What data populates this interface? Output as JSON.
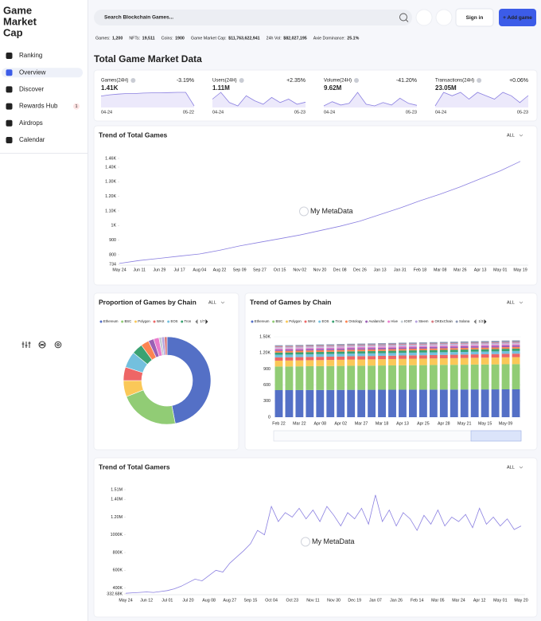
{
  "sidebar": {
    "logo": [
      "Game",
      "Market",
      "Cap"
    ],
    "active": 1,
    "nav": [
      {
        "label": "Ranking"
      },
      {
        "label": "Overview"
      },
      {
        "label": "Discover"
      },
      {
        "label": "Rewards Hub",
        "badge": "1"
      },
      {
        "label": "Airdrops"
      },
      {
        "label": "Calendar"
      }
    ]
  },
  "header": {
    "search_placeholder": "Search Blockchain Games...",
    "sign_in": "Sign in",
    "add_game": "+ Add game"
  },
  "stats": [
    {
      "label": "Games:",
      "value": "1,200"
    },
    {
      "label": "NFTs:",
      "value": "19,511"
    },
    {
      "label": "Coins:",
      "value": "1900"
    },
    {
      "label": "Game Market Cap:",
      "value": "$11,763,622,941"
    },
    {
      "label": "24h Vol:",
      "value": "$82,027,195"
    },
    {
      "label": "Axie Dominance:",
      "value": "25.1%"
    }
  ],
  "market": {
    "title": "Total Game Market Data",
    "cards": [
      {
        "label": "Games(24H)",
        "value": "1.41K",
        "change": "-3.19%",
        "start": "04-24",
        "end": "05-22",
        "values": [
          1450,
          1455,
          1458,
          1460,
          1460,
          1462,
          1463,
          1463,
          1464,
          1465,
          1465,
          1410
        ]
      },
      {
        "label": "Users(24H)",
        "value": "1.11M",
        "change": "+2.35%",
        "start": "04-24",
        "end": "05-23",
        "values": [
          1.2,
          1.4,
          1.1,
          1.0,
          1.3,
          1.15,
          1.05,
          1.25,
          1.1,
          1.2,
          1.05,
          1.11
        ]
      },
      {
        "label": "Volume(24H)",
        "value": "9.62M",
        "change": "-41.20%",
        "start": "04-24",
        "end": "05-23",
        "values": [
          9,
          14,
          10,
          12,
          25,
          11,
          9,
          13,
          10,
          18,
          12,
          9.62
        ]
      },
      {
        "label": "Transactions(24H)",
        "value": "23.05M",
        "change": "+0.06%",
        "start": "04-24",
        "end": "05-23",
        "values": [
          20,
          24,
          23,
          24,
          22,
          24,
          23,
          22,
          24,
          23,
          21,
          23.05
        ]
      }
    ]
  },
  "chart_data": [
    {
      "type": "line",
      "title": "Trend of Total Games",
      "range": "ALL",
      "watermark": "My MetaData",
      "color": "#8a7fe0",
      "categories": [
        "May 24",
        "Jun 11",
        "Jun 29",
        "Jul 17",
        "Aug 04",
        "Aug 22",
        "Sep 09",
        "Sep 27",
        "Oct 15",
        "Nov 02",
        "Nov 20",
        "Dec 08",
        "Dec 26",
        "Jan 13",
        "Jan 31",
        "Feb 18",
        "Mar 08",
        "Mar 26",
        "Apr 13",
        "May 01",
        "May 19"
      ],
      "values": [
        740,
        760,
        775,
        790,
        805,
        830,
        860,
        885,
        910,
        935,
        965,
        995,
        1030,
        1075,
        1120,
        1170,
        1215,
        1265,
        1320,
        1375,
        1440
      ],
      "ylim": [
        734,
        1460
      ],
      "yticks": [
        734,
        800,
        900,
        {
          "value": 1000,
          "label": "1K"
        },
        {
          "value": 1100,
          "label": "1.10K"
        },
        {
          "value": 1200,
          "label": "1.20K"
        },
        {
          "value": 1300,
          "label": "1.30K"
        },
        {
          "value": 1400,
          "label": "1.40K"
        },
        {
          "value": 1460,
          "label": "1.46K"
        }
      ]
    },
    {
      "type": "pie",
      "title": "Proportion of Games by Chain",
      "range": "ALL",
      "pager": "1/7",
      "categories": [
        "Ethereum",
        "BSC",
        "Polygon",
        "WAX",
        "EOS",
        "Tron",
        null,
        null,
        null,
        null,
        null,
        null
      ],
      "values": [
        47,
        22,
        6,
        5,
        6,
        4,
        3,
        2,
        2,
        1,
        1,
        1
      ],
      "colors": [
        "#5470c6",
        "#91cc75",
        "#fac858",
        "#ee6666",
        "#73c0de",
        "#3ba272",
        "#fc8452",
        "#9a60b4",
        "#ea7ccc",
        "#c4ccd3",
        "#b6a2de",
        "#d87a80"
      ]
    },
    {
      "type": "stacked_bar",
      "title": "Trend of Games by Chain",
      "range": "ALL",
      "pager": "1/3",
      "categories": [
        "Feb 22",
        null,
        "Mar 22",
        null,
        "Apr 08",
        null,
        "Apr 02",
        null,
        "Mar 27",
        null,
        "Mar 18",
        null,
        "Apr 13",
        null,
        "Apr 25",
        null,
        "Apr 28",
        null,
        "May 21",
        null,
        "May 15",
        null,
        "May 09",
        null
      ],
      "ylim": [
        0,
        1500
      ],
      "yticks": [
        0,
        300,
        600,
        900,
        {
          "value": 1200,
          "label": "1.20K"
        },
        {
          "value": 1500,
          "label": "1.50K"
        }
      ],
      "series": [
        {
          "name": "Ethereum",
          "color": "#5470c6",
          "values": [
            505,
            505,
            506,
            507,
            507,
            508,
            509,
            510,
            510,
            511,
            512,
            512,
            513,
            514,
            514,
            515,
            516,
            516,
            517,
            518,
            518,
            519,
            520,
            520
          ]
        },
        {
          "name": "BSC",
          "color": "#91cc75",
          "values": [
            440,
            441,
            442,
            444,
            445,
            446,
            447,
            449,
            450,
            451,
            452,
            454,
            455,
            456,
            457,
            459,
            460,
            461,
            462,
            464,
            465,
            466,
            468,
            470
          ]
        },
        {
          "name": "Polygon",
          "color": "#fac858",
          "values": [
            110,
            111,
            112,
            112,
            113,
            114,
            115,
            116,
            117,
            117,
            118,
            119,
            120,
            121,
            122,
            122,
            123,
            124,
            125,
            126,
            127,
            128,
            129,
            130
          ]
        },
        {
          "name": "WAX",
          "color": "#ee6666",
          "values": [
            60,
            60,
            60,
            61,
            61,
            61,
            61,
            62,
            62,
            62,
            62,
            62,
            63,
            63,
            63,
            63,
            63,
            64,
            64,
            64,
            64,
            64,
            65,
            65
          ]
        },
        {
          "name": "EOS",
          "color": "#73c0de",
          "values": [
            50,
            50,
            50,
            50,
            50,
            50,
            50,
            50,
            50,
            50,
            50,
            50,
            50,
            50,
            50,
            50,
            50,
            50,
            50,
            50,
            50,
            50,
            50,
            50
          ]
        },
        {
          "name": "Tron",
          "color": "#3ba272",
          "values": [
            40,
            40,
            40,
            40,
            41,
            41,
            41,
            41,
            41,
            41,
            42,
            42,
            42,
            42,
            42,
            42,
            43,
            43,
            43,
            43,
            43,
            43,
            44,
            44
          ]
        },
        {
          "name": "Ontology",
          "color": "#fc8452",
          "values": [
            30,
            30,
            30,
            30,
            30,
            30,
            30,
            30,
            30,
            30,
            30,
            30,
            30,
            30,
            30,
            30,
            30,
            30,
            30,
            30,
            30,
            30,
            30,
            30
          ]
        },
        {
          "name": "Avalanche",
          "color": "#9a60b4",
          "values": [
            25,
            25,
            25,
            26,
            26,
            26,
            27,
            27,
            27,
            28,
            28,
            28,
            29,
            29,
            29,
            30,
            30,
            30,
            31,
            31,
            31,
            32,
            32,
            32
          ]
        },
        {
          "name": "Hive",
          "color": "#ea7ccc",
          "values": [
            20,
            20,
            20,
            20,
            20,
            20,
            20,
            20,
            20,
            20,
            20,
            20,
            20,
            20,
            20,
            20,
            20,
            20,
            20,
            20,
            20,
            20,
            20,
            20
          ]
        },
        {
          "name": "IOST",
          "color": "#c4ccd3",
          "values": [
            15,
            15,
            15,
            15,
            15,
            15,
            15,
            15,
            15,
            15,
            15,
            15,
            15,
            15,
            15,
            15,
            15,
            15,
            15,
            15,
            15,
            15,
            15,
            15
          ]
        },
        {
          "name": "Steem",
          "color": "#b6a2de",
          "values": [
            15,
            15,
            15,
            15,
            15,
            15,
            15,
            15,
            15,
            15,
            15,
            15,
            15,
            15,
            15,
            15,
            15,
            15,
            15,
            15,
            15,
            15,
            15,
            15
          ]
        },
        {
          "name": "OKExChain",
          "color": "#d87a80",
          "values": [
            12,
            12,
            12,
            12,
            12,
            12,
            12,
            12,
            12,
            12,
            12,
            12,
            12,
            12,
            12,
            12,
            12,
            12,
            12,
            12,
            12,
            12,
            12,
            12
          ]
        },
        {
          "name": "Solana",
          "color": "#8d98b3",
          "values": [
            20,
            20,
            21,
            21,
            22,
            22,
            23,
            23,
            24,
            24,
            25,
            25,
            26,
            26,
            27,
            27,
            28,
            28,
            29,
            29,
            30,
            30,
            30,
            30
          ]
        }
      ]
    },
    {
      "type": "line",
      "title": "Trend of Total Gamers",
      "range": "ALL",
      "watermark": "My MetaData",
      "color": "#8a7fe0",
      "categories": [
        "May 24",
        null,
        null,
        "Jun 12",
        null,
        null,
        "Jul 01",
        null,
        null,
        "Jul 20",
        null,
        null,
        "Aug 08",
        null,
        null,
        "Aug 27",
        null,
        null,
        "Sep 15",
        null,
        null,
        "Oct 04",
        null,
        null,
        "Oct 23",
        null,
        null,
        "Nov 11",
        null,
        null,
        "Nov 30",
        null,
        null,
        "Dec 19",
        null,
        null,
        "Jan 07",
        null,
        null,
        "Jan 26",
        null,
        null,
        "Feb 14",
        null,
        null,
        "Mar 05",
        null,
        null,
        "Mar 24",
        null,
        null,
        "Apr 12",
        null,
        null,
        "May 01",
        null,
        null,
        "May 20"
      ],
      "values": [
        340000,
        345000,
        350000,
        355000,
        350000,
        360000,
        370000,
        390000,
        420000,
        460000,
        500000,
        480000,
        540000,
        600000,
        580000,
        680000,
        750000,
        820000,
        900000,
        1050000,
        1000000,
        1320000,
        1150000,
        1250000,
        1200000,
        1300000,
        1180000,
        1280000,
        1150000,
        1320000,
        1220000,
        1100000,
        1250000,
        1180000,
        1300000,
        1120000,
        1450000,
        1150000,
        1280000,
        1100000,
        1250000,
        1180000,
        1050000,
        1220000,
        1120000,
        1280000,
        1100000,
        1200000,
        1150000,
        1230000,
        1080000,
        1300000,
        1120000,
        1200000,
        1100000,
        1180000,
        1060000,
        1100000
      ],
      "ylim": [
        332680,
        1510000
      ],
      "yticks": [
        {
          "value": 332680,
          "label": "332.68K"
        },
        {
          "value": 400000,
          "label": "400K"
        },
        {
          "value": 600000,
          "label": "600K"
        },
        {
          "value": 800000,
          "label": "800K"
        },
        {
          "value": 1000000,
          "label": "1000K"
        },
        {
          "value": 1200000,
          "label": "1.20M"
        },
        {
          "value": 1400000,
          "label": "1.40M"
        },
        {
          "value": 1510000,
          "label": "1.51M"
        }
      ]
    }
  ]
}
